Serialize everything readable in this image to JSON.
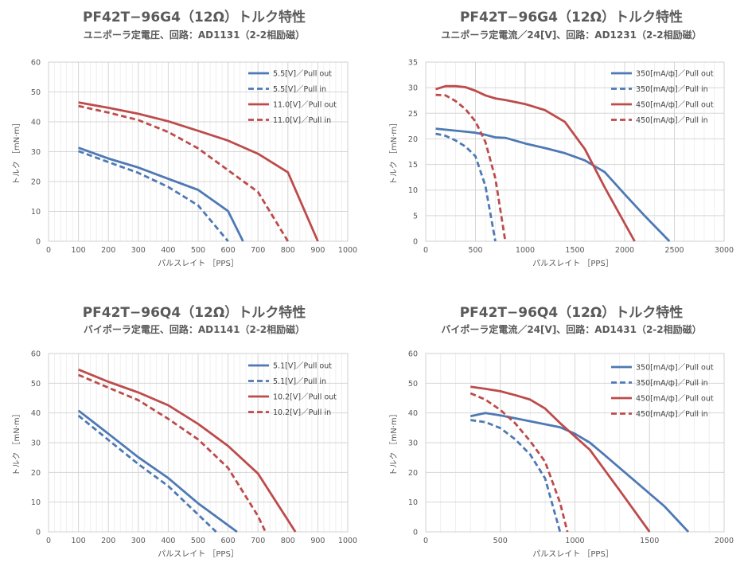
{
  "chart_data": [
    {
      "type": "line",
      "title": "PF42T−96G4（12Ω）トルク特性",
      "subtitle": "ユニポーラ定電圧、回路：AD1131（2-2相励磁）",
      "xlabel": "パルスレイト ［PPS］",
      "ylabel": "トルク ［mN·m］",
      "xlim": [
        0,
        1000
      ],
      "ylim": [
        0,
        60
      ],
      "x_ticks": [
        0,
        100,
        200,
        300,
        400,
        500,
        600,
        700,
        800,
        900,
        1000
      ],
      "y_ticks": [
        0,
        10,
        20,
        30,
        40,
        50,
        60
      ],
      "grid": true,
      "legend_position": "top-right",
      "series": [
        {
          "name": "5.5[V]／Pull out",
          "color": "#4e79b4",
          "dash": false,
          "points": [
            [
              100,
              31.3
            ],
            [
              200,
              27.7
            ],
            [
              300,
              24.7
            ],
            [
              400,
              20.9
            ],
            [
              500,
              17.2
            ],
            [
              600,
              10.1
            ],
            [
              650,
              0
            ]
          ]
        },
        {
          "name": "5.5[V]／Pull in",
          "color": "#4e79b4",
          "dash": true,
          "points": [
            [
              100,
              30.2
            ],
            [
              200,
              26.5
            ],
            [
              300,
              22.9
            ],
            [
              400,
              18.2
            ],
            [
              500,
              12.0
            ],
            [
              600,
              0
            ]
          ]
        },
        {
          "name": "11.0[V]／Pull out",
          "color": "#bd4b4b",
          "dash": false,
          "points": [
            [
              100,
              46.5
            ],
            [
              200,
              44.7
            ],
            [
              300,
              42.7
            ],
            [
              400,
              40.2
            ],
            [
              500,
              37.0
            ],
            [
              600,
              33.7
            ],
            [
              700,
              29.3
            ],
            [
              800,
              23.1
            ],
            [
              900,
              0
            ]
          ]
        },
        {
          "name": "11.0[V]／Pull in",
          "color": "#bd4b4b",
          "dash": true,
          "points": [
            [
              100,
              45.3
            ],
            [
              200,
              43.1
            ],
            [
              300,
              40.6
            ],
            [
              400,
              36.6
            ],
            [
              500,
              31.1
            ],
            [
              600,
              23.8
            ],
            [
              700,
              16.5
            ],
            [
              800,
              0
            ]
          ]
        }
      ]
    },
    {
      "type": "line",
      "title": "PF42T−96G4（12Ω）トルク特性",
      "subtitle": "ユニポーラ定電流／24[V]、回路：AD1231（2-2相励磁）",
      "xlabel": "パルスレイト ［PPS］",
      "ylabel": "トルク ［mN·m］",
      "xlim": [
        0,
        3000
      ],
      "ylim": [
        0,
        35
      ],
      "x_ticks": [
        0,
        500,
        1000,
        1500,
        2000,
        2500,
        3000
      ],
      "y_ticks": [
        0,
        5,
        10,
        15,
        20,
        25,
        30,
        35
      ],
      "grid": true,
      "legend_position": "top-right",
      "series": [
        {
          "name": "350[mA/ф]／Pull out",
          "color": "#4e79b4",
          "dash": false,
          "points": [
            [
              100,
              22.0
            ],
            [
              200,
              21.8
            ],
            [
              300,
              21.6
            ],
            [
              400,
              21.4
            ],
            [
              500,
              21.2
            ],
            [
              600,
              20.8
            ],
            [
              700,
              20.3
            ],
            [
              800,
              20.2
            ],
            [
              1000,
              19.1
            ],
            [
              1200,
              18.2
            ],
            [
              1400,
              17.2
            ],
            [
              1600,
              15.8
            ],
            [
              1800,
              13.5
            ],
            [
              2000,
              9.2
            ],
            [
              2200,
              5.0
            ],
            [
              2450,
              0
            ]
          ]
        },
        {
          "name": "350[mA/ф]／Pull in",
          "color": "#4e79b4",
          "dash": true,
          "points": [
            [
              100,
              21.0
            ],
            [
              200,
              20.6
            ],
            [
              300,
              19.7
            ],
            [
              400,
              18.5
            ],
            [
              500,
              16.6
            ],
            [
              600,
              10.8
            ],
            [
              700,
              0
            ]
          ]
        },
        {
          "name": "450[mA/ф]／Pull out",
          "color": "#bd4b4b",
          "dash": false,
          "points": [
            [
              100,
              29.7
            ],
            [
              200,
              30.3
            ],
            [
              300,
              30.3
            ],
            [
              400,
              30.1
            ],
            [
              500,
              29.4
            ],
            [
              600,
              28.5
            ],
            [
              700,
              27.9
            ],
            [
              800,
              27.6
            ],
            [
              1000,
              26.8
            ],
            [
              1200,
              25.6
            ],
            [
              1400,
              23.3
            ],
            [
              1600,
              18.0
            ],
            [
              1800,
              10.5
            ],
            [
              2100,
              0
            ]
          ]
        },
        {
          "name": "450[mA/ф]／Pull in",
          "color": "#bd4b4b",
          "dash": true,
          "points": [
            [
              100,
              28.6
            ],
            [
              200,
              28.5
            ],
            [
              300,
              27.4
            ],
            [
              400,
              25.8
            ],
            [
              500,
              23.4
            ],
            [
              600,
              19.4
            ],
            [
              700,
              12.3
            ],
            [
              800,
              0
            ]
          ]
        }
      ]
    },
    {
      "type": "line",
      "title": "PF42T−96Q4（12Ω）トルク特性",
      "subtitle": "バイポーラ定電圧、回路：AD1141（2-2相励磁）",
      "xlabel": "パルスレイト ［PPS］",
      "ylabel": "トルク ［mN·m］",
      "xlim": [
        0,
        1000
      ],
      "ylim": [
        0,
        60
      ],
      "x_ticks": [
        0,
        100,
        200,
        300,
        400,
        500,
        600,
        700,
        800,
        900,
        1000
      ],
      "y_ticks": [
        0,
        10,
        20,
        30,
        40,
        50,
        60
      ],
      "grid": true,
      "legend_position": "top-right",
      "series": [
        {
          "name": "5.1[V]／Pull out",
          "color": "#4e79b4",
          "dash": false,
          "points": [
            [
              100,
              40.8
            ],
            [
              200,
              33.0
            ],
            [
              300,
              25.1
            ],
            [
              400,
              18.1
            ],
            [
              500,
              9.6
            ],
            [
              630,
              0
            ]
          ]
        },
        {
          "name": "5.1[V]／Pull in",
          "color": "#4e79b4",
          "dash": true,
          "points": [
            [
              100,
              39.1
            ],
            [
              200,
              30.9
            ],
            [
              300,
              22.8
            ],
            [
              400,
              15.4
            ],
            [
              500,
              5.8
            ],
            [
              560,
              0
            ]
          ]
        },
        {
          "name": "10.2[V]／Pull out",
          "color": "#bd4b4b",
          "dash": false,
          "points": [
            [
              100,
              54.6
            ],
            [
              200,
              50.5
            ],
            [
              300,
              46.9
            ],
            [
              400,
              42.6
            ],
            [
              500,
              36.3
            ],
            [
              600,
              28.9
            ],
            [
              700,
              19.6
            ],
            [
              825,
              0
            ]
          ]
        },
        {
          "name": "10.2[V]／Pull in",
          "color": "#bd4b4b",
          "dash": true,
          "points": [
            [
              100,
              52.8
            ],
            [
              200,
              48.5
            ],
            [
              300,
              44.3
            ],
            [
              400,
              38.0
            ],
            [
              500,
              31.1
            ],
            [
              600,
              21.5
            ],
            [
              700,
              5.3
            ],
            [
              725,
              0
            ]
          ]
        }
      ]
    },
    {
      "type": "line",
      "title": "PF42T−96Q4（12Ω）トルク特性",
      "subtitle": "バイポーラ定電流／24[V]、回路：AD1431（2-2相励磁）",
      "xlabel": "パルスレイト ［PPS］",
      "ylabel": "トルク ［mN·m］",
      "xlim": [
        0,
        2000
      ],
      "ylim": [
        0,
        60
      ],
      "x_ticks": [
        0,
        500,
        1000,
        1500,
        2000
      ],
      "y_ticks": [
        0,
        10,
        20,
        30,
        40,
        50,
        60
      ],
      "grid": true,
      "legend_position": "top-right",
      "series": [
        {
          "name": "350[mA/ф]／Pull out",
          "color": "#4e79b4",
          "dash": false,
          "points": [
            [
              300,
              38.9
            ],
            [
              400,
              40.0
            ],
            [
              500,
              39.2
            ],
            [
              600,
              38.2
            ],
            [
              700,
              37.2
            ],
            [
              800,
              36.2
            ],
            [
              900,
              35.2
            ],
            [
              1000,
              33.0
            ],
            [
              1100,
              30.0
            ],
            [
              1200,
              25.8
            ],
            [
              1400,
              17.2
            ],
            [
              1600,
              8.6
            ],
            [
              1760,
              0
            ]
          ]
        },
        {
          "name": "350[mA/ф]／Pull in",
          "color": "#4e79b4",
          "dash": true,
          "points": [
            [
              300,
              37.6
            ],
            [
              400,
              36.9
            ],
            [
              500,
              34.9
            ],
            [
              600,
              31.1
            ],
            [
              700,
              26.0
            ],
            [
              800,
              18.0
            ],
            [
              900,
              0
            ]
          ]
        },
        {
          "name": "450[mA/ф]／Pull out",
          "color": "#bd4b4b",
          "dash": false,
          "points": [
            [
              300,
              48.8
            ],
            [
              400,
              48.1
            ],
            [
              500,
              47.3
            ],
            [
              600,
              46.0
            ],
            [
              700,
              44.5
            ],
            [
              800,
              41.5
            ],
            [
              900,
              36.6
            ],
            [
              1000,
              32.1
            ],
            [
              1100,
              27.6
            ],
            [
              1300,
              13.9
            ],
            [
              1500,
              0
            ]
          ]
        },
        {
          "name": "450[mA/ф]／Pull in",
          "color": "#bd4b4b",
          "dash": true,
          "points": [
            [
              300,
              46.6
            ],
            [
              400,
              44.5
            ],
            [
              500,
              41.0
            ],
            [
              600,
              36.5
            ],
            [
              700,
              30.5
            ],
            [
              800,
              23.6
            ],
            [
              900,
              9.8
            ],
            [
              950,
              0
            ]
          ]
        }
      ]
    }
  ]
}
